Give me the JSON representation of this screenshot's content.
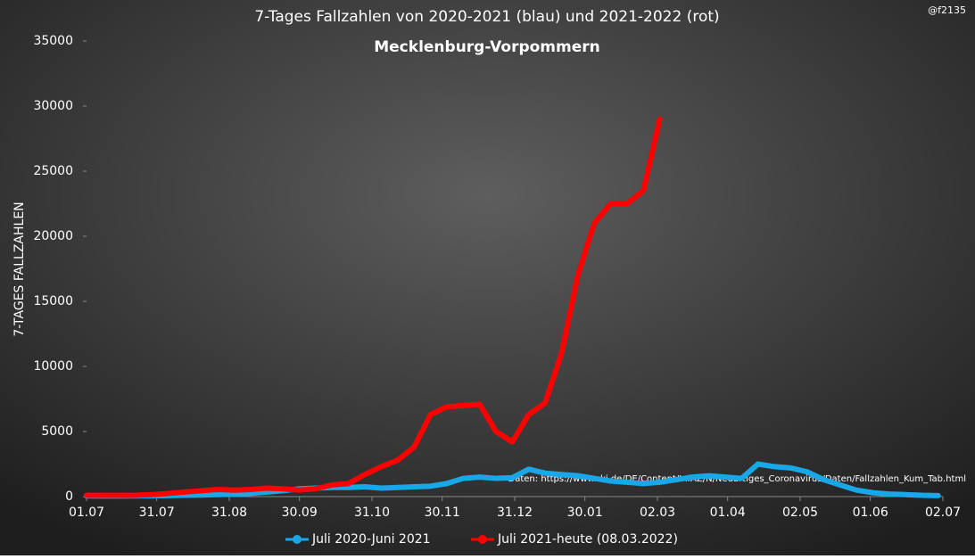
{
  "chart_data": {
    "type": "line",
    "title": "7-Tages Fallzahlen von 2020-2021 (blau) und 2021-2022 (rot)",
    "subtitle": "Mecklenburg-Vorpommern",
    "credit": "@f2135",
    "source": "Daten: https://www.rki.de/DE/Content/InfAZ/N/Neuartiges_Coronavirus/Daten/Fallzahlen_Kum_Tab.html",
    "y_label": "7-TAGES FALLZAHLEN",
    "x": [
      0,
      7,
      14,
      21,
      28,
      35,
      42,
      49,
      56,
      63,
      70,
      77,
      84,
      91,
      98,
      105,
      112,
      119,
      126,
      133,
      140,
      147,
      154,
      161,
      168,
      175,
      182,
      189,
      196,
      203,
      210,
      217,
      224,
      231,
      238,
      245,
      252,
      259,
      266,
      273,
      280,
      287,
      294,
      301,
      308,
      315,
      322,
      329,
      336,
      343,
      350,
      357,
      364
    ],
    "series": [
      {
        "name": "Juli 2020-Juni 2021",
        "color": "#1aa7e8",
        "values": [
          50,
          40,
          40,
          50,
          60,
          80,
          100,
          120,
          150,
          180,
          250,
          350,
          450,
          600,
          650,
          700,
          700,
          750,
          650,
          700,
          750,
          800,
          1000,
          1400,
          1500,
          1400,
          1450,
          2100,
          1800,
          1700,
          1600,
          1400,
          1200,
          1100,
          1000,
          1100,
          1300,
          1500,
          1600,
          1500,
          1400,
          2500,
          2300,
          2200,
          1900,
          1300,
          900,
          500,
          300,
          200,
          150,
          100,
          80
        ]
      },
      {
        "name": "Juli 2021-heute (08.03.2022)",
        "color": "#ff0000",
        "values": [
          100,
          100,
          100,
          100,
          150,
          250,
          350,
          450,
          550,
          500,
          550,
          650,
          600,
          500,
          600,
          900,
          1000,
          1700,
          2300,
          2800,
          3800,
          6300,
          6900,
          7000,
          7100,
          5000,
          4200,
          6300,
          7200,
          11000,
          17000,
          21000,
          22500,
          22500,
          23500,
          29000,
          null,
          null,
          null,
          null,
          null,
          null,
          null,
          null,
          null,
          null,
          null,
          null,
          null,
          null,
          null,
          null,
          null
        ]
      }
    ],
    "xlim": [
      0,
      366
    ],
    "xticks": [
      {
        "value": 0,
        "label": "01.07"
      },
      {
        "value": 30,
        "label": "31.07"
      },
      {
        "value": 61,
        "label": "31.08"
      },
      {
        "value": 91,
        "label": "30.09"
      },
      {
        "value": 122,
        "label": "31.10"
      },
      {
        "value": 152,
        "label": "30.11"
      },
      {
        "value": 183,
        "label": "31.12"
      },
      {
        "value": 213,
        "label": "30.01"
      },
      {
        "value": 244,
        "label": "02.03"
      },
      {
        "value": 274,
        "label": "01.04"
      },
      {
        "value": 305,
        "label": "02.05"
      },
      {
        "value": 335,
        "label": "01.06"
      },
      {
        "value": 366,
        "label": "02.07"
      }
    ],
    "ylim": [
      0,
      35000
    ],
    "yticks": [
      0,
      5000,
      10000,
      15000,
      20000,
      25000,
      30000,
      35000
    ]
  }
}
